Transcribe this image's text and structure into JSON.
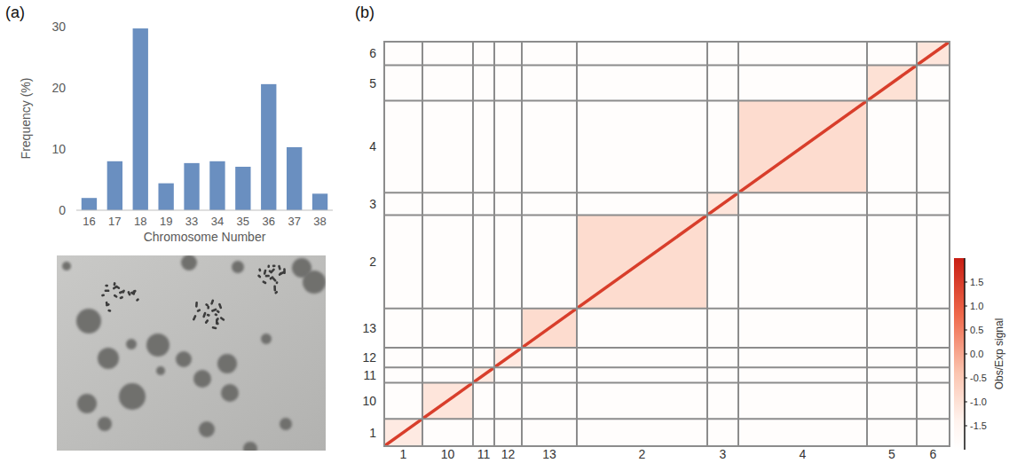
{
  "chart_data": [
    {
      "type": "bar",
      "panel": "(a)",
      "categories": [
        "16",
        "17",
        "18",
        "19",
        "33",
        "34",
        "35",
        "36",
        "37",
        "38"
      ],
      "values": [
        2,
        8,
        29.7,
        4.4,
        7.7,
        8,
        7.1,
        20.6,
        10.3,
        2.7
      ],
      "color": "#6a8fc0",
      "xlabel": "Chromosome Number",
      "ylabel": "Frequency (%)",
      "ylim": [
        0,
        30
      ],
      "yticks": [
        0,
        10,
        20,
        30
      ],
      "grid": false
    },
    {
      "type": "heatmap",
      "panel": "(b)",
      "blocks": [
        {
          "label": "1",
          "length": 43,
          "diagonal": 1.5,
          "within": -1.2
        },
        {
          "label": "10",
          "length": 57,
          "diagonal": 1.5,
          "within": -1.1
        },
        {
          "label": "11",
          "length": 24,
          "diagonal": 1.5,
          "within": -1.2
        },
        {
          "label": "12",
          "length": 31,
          "diagonal": 1.5,
          "within": -1.2
        },
        {
          "label": "13",
          "length": 62,
          "diagonal": 1.5,
          "within": -0.9
        },
        {
          "label": "2",
          "length": 147,
          "diagonal": 1.5,
          "within": -0.9
        },
        {
          "label": "3",
          "length": 35,
          "diagonal": 1.5,
          "within": -1.1
        },
        {
          "label": "4",
          "length": 145,
          "diagonal": 1.5,
          "within": -0.9
        },
        {
          "label": "5",
          "length": 56,
          "diagonal": 1.5,
          "within": -1.0
        },
        {
          "label": "6",
          "length": 37,
          "diagonal": 1.5,
          "within": -1.1
        }
      ],
      "between": -1.9,
      "colorbar": {
        "label": "Obs/Exp signal",
        "range": [
          -2,
          2
        ],
        "ticks": [
          1.5,
          {
            "value": 1,
            "label": "1.0"
          },
          0.5,
          {
            "value": 0,
            "label": "0.0"
          },
          -0.5,
          {
            "value": -1,
            "label": "-1.0"
          },
          -1.5
        ]
      }
    }
  ]
}
